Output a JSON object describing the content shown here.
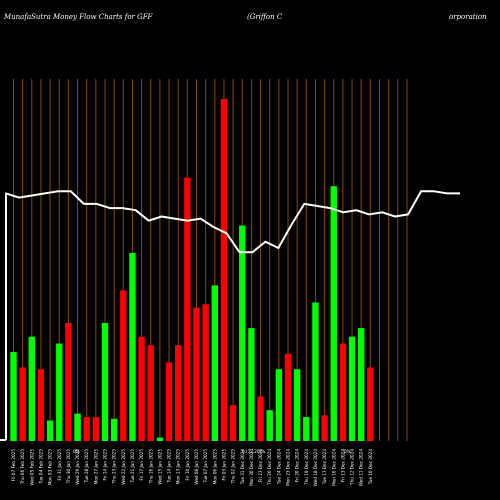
{
  "header": {
    "left": "MunafaSutra  Money Flow  Charts for GFF",
    "middle": "(Griffon  C",
    "right": "orporation"
  },
  "colors": {
    "background": "#000000",
    "up": "#00ff00",
    "down": "#ff0000",
    "grid": "#8a4a00",
    "line": "#ffffff"
  },
  "chart_data": {
    "type": "bar",
    "title": "MunafaSutra Money Flow Charts for GFF (Griffon Corporation)",
    "ylim": [
      0,
      100
    ],
    "grid": true,
    "bar_colors": [
      "green",
      "red",
      "green",
      "red",
      "green",
      "green",
      "red",
      "green",
      "red",
      "red",
      "green",
      "green",
      "red",
      "green",
      "red",
      "red",
      "green",
      "red",
      "red",
      "red",
      "red",
      "red",
      "green",
      "red",
      "red",
      "green",
      "green",
      "red",
      "green",
      "green",
      "red",
      "green",
      "green",
      "green",
      "red",
      "green",
      "red",
      "green",
      "green",
      "red",
      "green",
      "green",
      "red",
      "red"
    ],
    "values": [
      26.0,
      21.5,
      30.5,
      21.0,
      6.0,
      28.5,
      34.5,
      8.0,
      7.0,
      7.0,
      34.5,
      6.5,
      44.0,
      55.0,
      30.5,
      28.0,
      1.0,
      23.0,
      28.0,
      77.0,
      39.0,
      40.0,
      45.5,
      100.0,
      10.5,
      63.0,
      33.0,
      13.0,
      9.0,
      21.0,
      25.5,
      21.0,
      7.0,
      40.5,
      7.5,
      74.5,
      28.5,
      30.5,
      33.0,
      21.5,
      0,
      0,
      0,
      0
    ],
    "line_values": [
      73.0,
      72.0,
      72.5,
      73.0,
      73.5,
      73.5,
      70.5,
      70.5,
      69.5,
      69.5,
      69.0,
      66.5,
      67.5,
      67.0,
      66.5,
      67.0,
      65.0,
      63.5,
      59.0,
      59.0,
      61.5,
      60.0,
      65.5,
      70.5,
      70.0,
      69.5,
      68.5,
      69.0,
      68.0,
      68.5,
      67.5,
      68.0,
      73.5,
      73.5,
      73.0,
      73.0
    ],
    "x_labels": [
      "Fri 07 Feb 2025",
      "Thu 06 Feb 2025",
      "Wed 05 Feb 2025",
      "Tue 04 Feb 2025",
      "Mon 03 Feb 2025",
      "Fri 31 Jan 2025",
      "Thu 30 Jan 2025",
      "Wed 29 Jan 2025",
      "Tue 28 Jan 2025",
      "Mon 27 Jan 2025",
      "Fri 24 Jan 2025",
      "Thu 23 Jan 2025",
      "Wed 22 Jan 2025",
      "Tue 21 Jan 2025",
      "Fri 17 Jan 2025",
      "Thu 16 Jan 2025",
      "Wed 15 Jan 2025",
      "Tue 14 Jan 2025",
      "Mon 13 Jan 2025",
      "Fri 10 Jan 2025",
      "Wed 08 Jan 2025",
      "Tue 07 Jan 2025",
      "Mon 06 Jan 2025",
      "Fri 03 Jan 2025",
      "Thu 02 Jan 2025",
      "Tue 31 Dec 2024",
      "Mon 30 Dec 2024",
      "Fri 27 Dec 2024",
      "Thu 26 Dec 2024",
      "Tue 24 Dec 2024",
      "Mon 23 Dec 2024",
      "Fri 20 Dec 2024",
      "Thu 19 Dec 2024",
      "Wed 18 Dec 2024",
      "Tue 17 Dec 2024",
      "Mon 16 Dec 2024",
      "Fri 13 Dec 2024",
      "Thu 12 Dec 2024",
      "Wed 11 Dec 2024",
      "Tue 10 Dec 2024"
    ],
    "mid_labels": [
      "0%",
      "0 (72.20)%",
      "0%"
    ]
  }
}
